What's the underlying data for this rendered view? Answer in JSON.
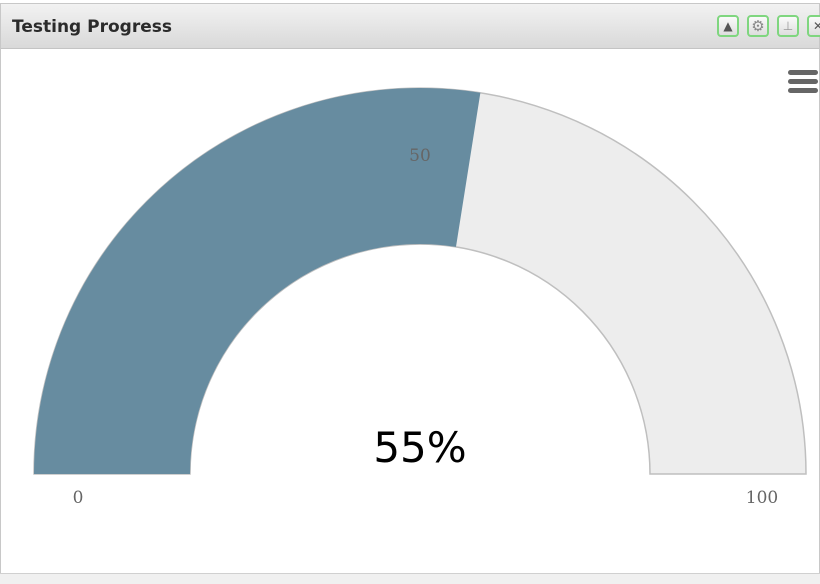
{
  "panel": {
    "title": "Testing Progress",
    "buttons": [
      "collapse-icon",
      "gear-icon",
      "pin-icon",
      "close-icon"
    ]
  },
  "chart_data": {
    "type": "gauge",
    "value": 55,
    "min": 0,
    "max": 100,
    "value_label": "55%",
    "tick_labels": {
      "min": "0",
      "mid": "50",
      "max": "100"
    },
    "colors": {
      "fill": "#678ca0",
      "track": "#ededed",
      "border": "#bfbfbf"
    }
  }
}
